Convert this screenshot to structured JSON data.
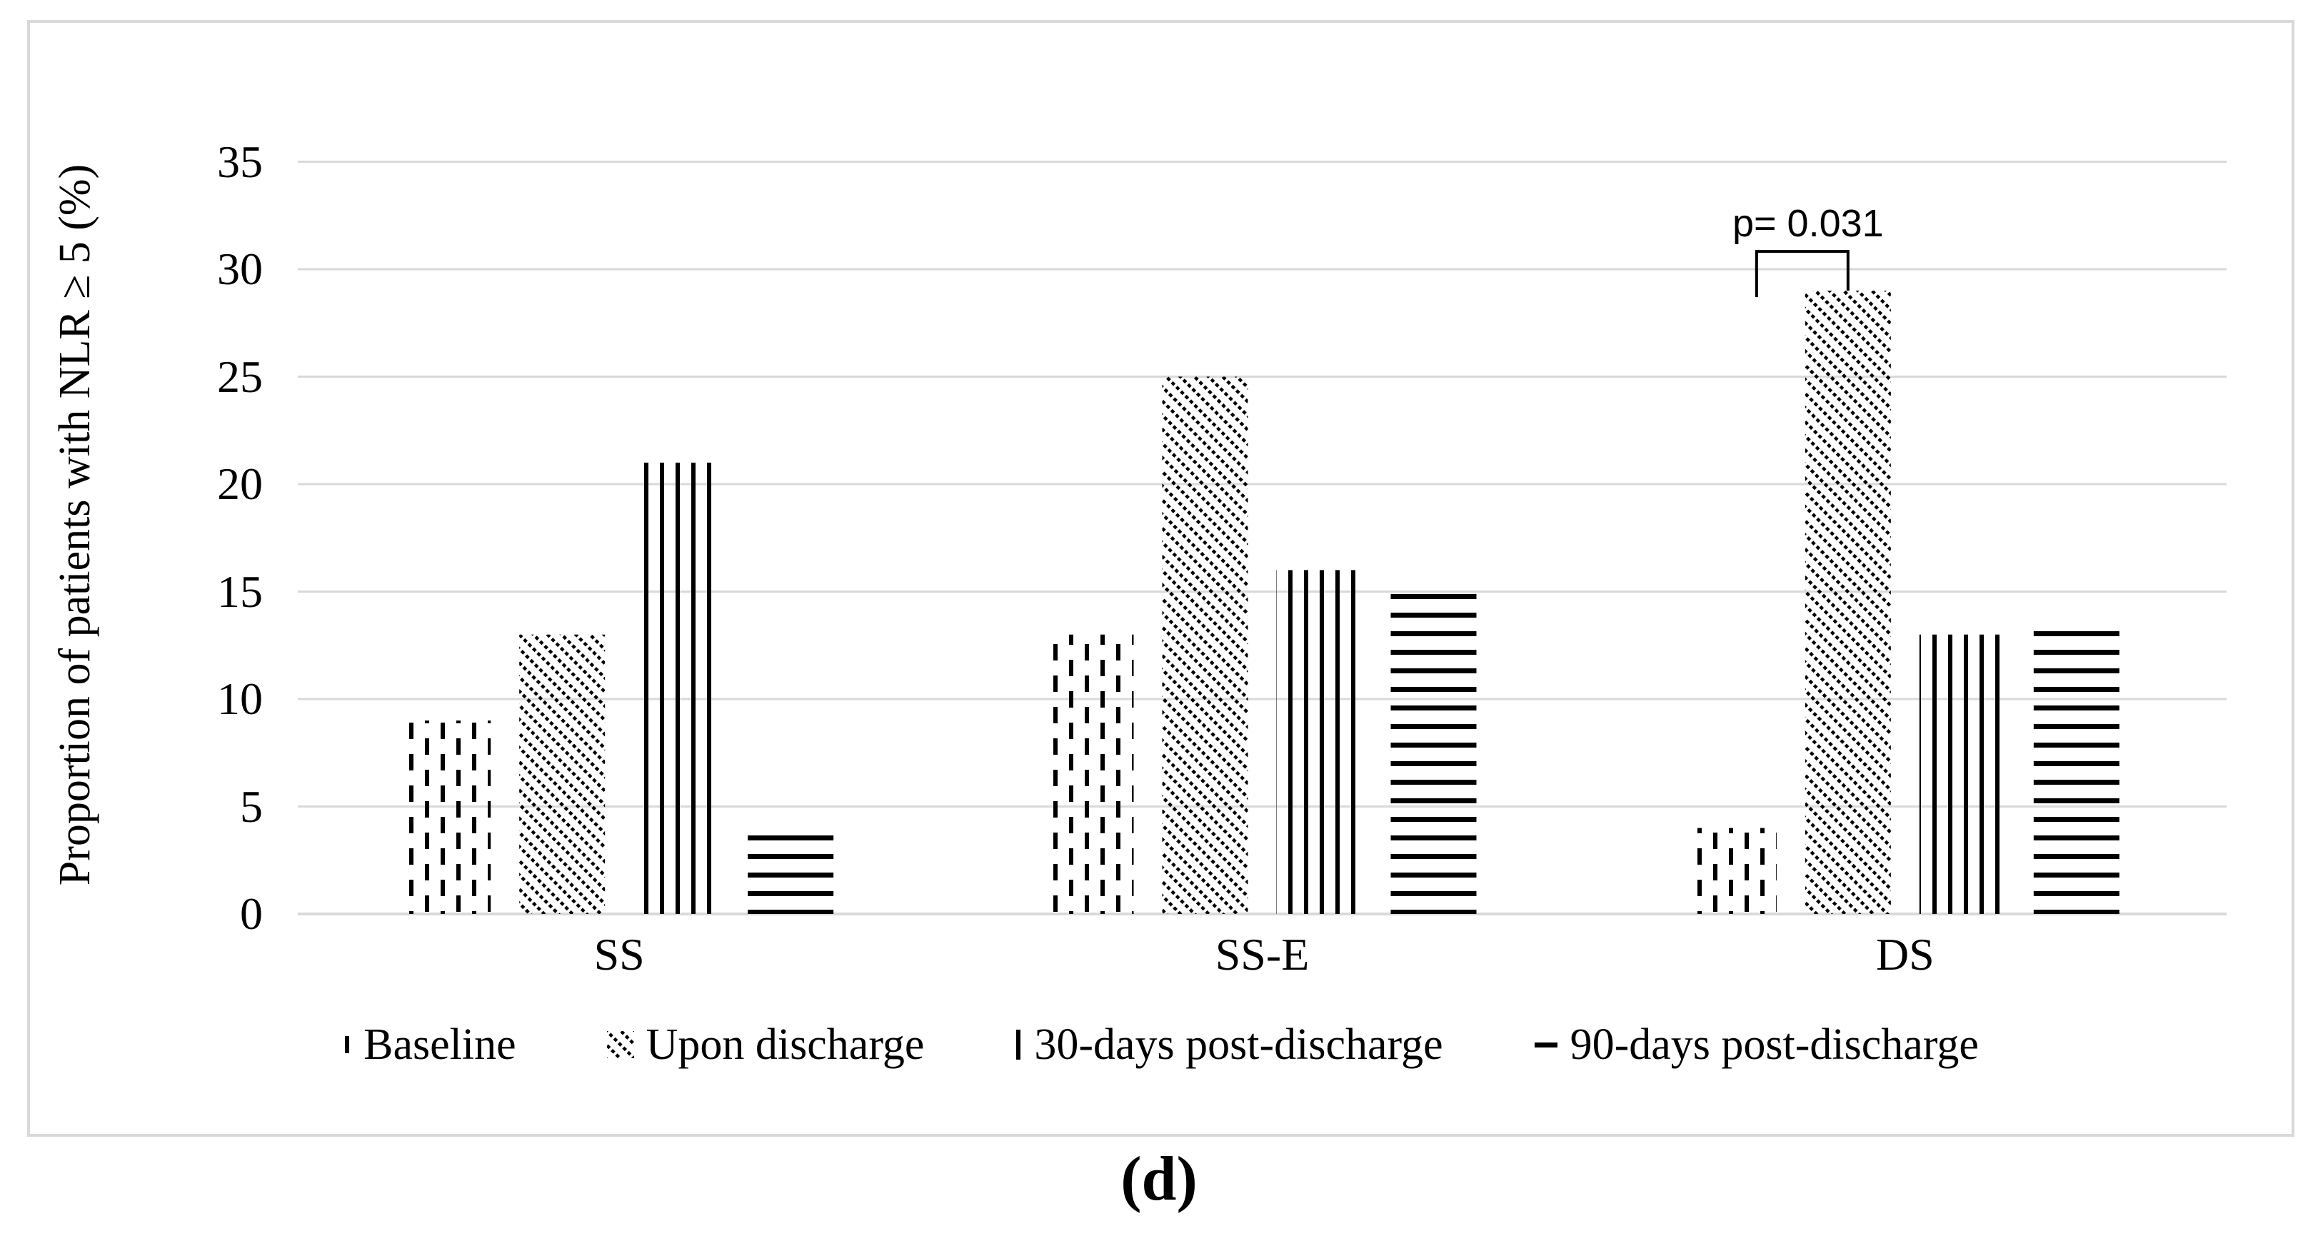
{
  "figure": {
    "caption": "(d)"
  },
  "chart_data": {
    "type": "bar",
    "title": "",
    "xlabel": "",
    "ylabel": "Proportion of patients with NLR ≥ 5 (%)",
    "ylim": [
      0,
      35
    ],
    "yticks": [
      0,
      5,
      10,
      15,
      20,
      25,
      30,
      35
    ],
    "grid": "horizontal",
    "gridline_color": "#d9d9d9",
    "bar_color": "#000000",
    "categories": [
      "SS",
      "SS-E",
      "DS"
    ],
    "series": [
      {
        "name": "Baseline",
        "pattern": "dashed-vertical",
        "values": [
          9,
          13,
          4
        ]
      },
      {
        "name": "Upon discharge",
        "pattern": "diagonal-hatch",
        "values": [
          13,
          25,
          29
        ]
      },
      {
        "name": "30-days post-discharge",
        "pattern": "vertical-lines",
        "values": [
          21,
          16,
          13
        ]
      },
      {
        "name": "90-days post-discharge",
        "pattern": "horizontal-lines",
        "values": [
          4,
          15,
          13.5
        ]
      }
    ],
    "legend_position": "bottom",
    "annotation": {
      "text": "p= 0.031",
      "category": "DS",
      "between": [
        "Baseline",
        "Upon discharge"
      ]
    }
  }
}
